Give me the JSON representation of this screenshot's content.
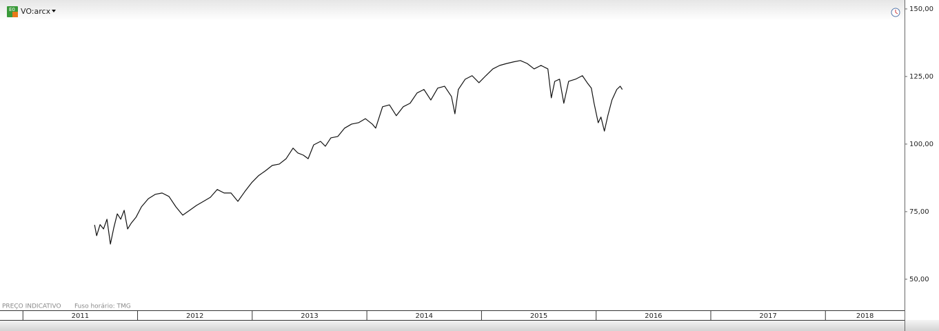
{
  "chart_data": {
    "type": "line",
    "title": "VO:arcx",
    "notes": [
      "PREÇO INDICATIVO",
      "Fuso horário: TMG"
    ],
    "x": [
      2011.625,
      2011.643,
      2011.673,
      2011.703,
      2011.733,
      2011.763,
      2011.793,
      2011.823,
      2011.853,
      2011.883,
      2011.913,
      2011.944,
      2011.986,
      2012.034,
      2012.094,
      2012.154,
      2012.214,
      2012.274,
      2012.334,
      2012.394,
      2012.454,
      2012.514,
      2012.575,
      2012.635,
      2012.695,
      2012.755,
      2012.815,
      2012.875,
      2012.935,
      2012.995,
      2013.055,
      2013.115,
      2013.175,
      2013.236,
      2013.296,
      2013.356,
      2013.398,
      2013.446,
      2013.488,
      2013.536,
      2013.596,
      2013.638,
      2013.686,
      2013.746,
      2013.806,
      2013.867,
      2013.927,
      2013.987,
      2014.047,
      2014.077,
      2014.137,
      2014.197,
      2014.257,
      2014.317,
      2014.377,
      2014.438,
      2014.498,
      2014.558,
      2014.618,
      2014.678,
      2014.738,
      2014.768,
      2014.798,
      2014.858,
      2014.918,
      2014.978,
      2015.038,
      2015.099,
      2015.159,
      2015.219,
      2015.279,
      2015.339,
      2015.399,
      2015.459,
      2015.519,
      2015.579,
      2015.609,
      2015.639,
      2015.681,
      2015.718,
      2015.76,
      2015.82,
      2015.88,
      2015.922,
      2015.958,
      2015.982,
      2016.018,
      2016.042,
      2016.072,
      2016.102,
      2016.138,
      2016.18,
      2016.21,
      2016.228
    ],
    "series": [
      {
        "name": "VO:arcx",
        "color": "#111111",
        "values": [
          70.1,
          66.1,
          70.2,
          68.6,
          72.2,
          63.0,
          69.1,
          74.2,
          72.2,
          75.5,
          68.6,
          70.7,
          72.9,
          76.8,
          79.8,
          81.4,
          81.9,
          80.6,
          76.8,
          73.7,
          75.5,
          77.3,
          78.8,
          80.3,
          83.2,
          81.9,
          81.9,
          78.8,
          82.4,
          85.7,
          88.3,
          90.1,
          92.1,
          92.6,
          94.6,
          98.5,
          96.7,
          95.9,
          94.6,
          99.7,
          101.0,
          99.2,
          102.3,
          102.8,
          105.9,
          107.4,
          107.9,
          109.4,
          107.4,
          105.9,
          113.8,
          114.5,
          110.5,
          113.8,
          115.1,
          118.9,
          120.2,
          116.3,
          120.7,
          121.4,
          117.6,
          111.2,
          120.2,
          124.0,
          125.3,
          122.7,
          125.3,
          127.8,
          129.1,
          129.8,
          130.4,
          130.9,
          129.8,
          127.8,
          129.1,
          127.8,
          117.1,
          123.2,
          124.0,
          115.1,
          123.2,
          124.0,
          125.3,
          122.7,
          120.7,
          115.1,
          107.9,
          110.0,
          104.8,
          110.5,
          116.3,
          120.2,
          121.4,
          120.2
        ]
      }
    ],
    "xlim": [
      2010.8,
      2018.69
    ],
    "xticks": [
      2011,
      2012,
      2013,
      2014,
      2015,
      2016,
      2017,
      2018
    ],
    "ylim": [
      38.5,
      153.3
    ],
    "yticks": [
      {
        "value": 50,
        "label": "50,00"
      },
      {
        "value": 75,
        "label": "75,00"
      },
      {
        "value": 100,
        "label": "100,00"
      },
      {
        "value": 125,
        "label": "125,00"
      },
      {
        "value": 150,
        "label": "150,00"
      }
    ]
  }
}
